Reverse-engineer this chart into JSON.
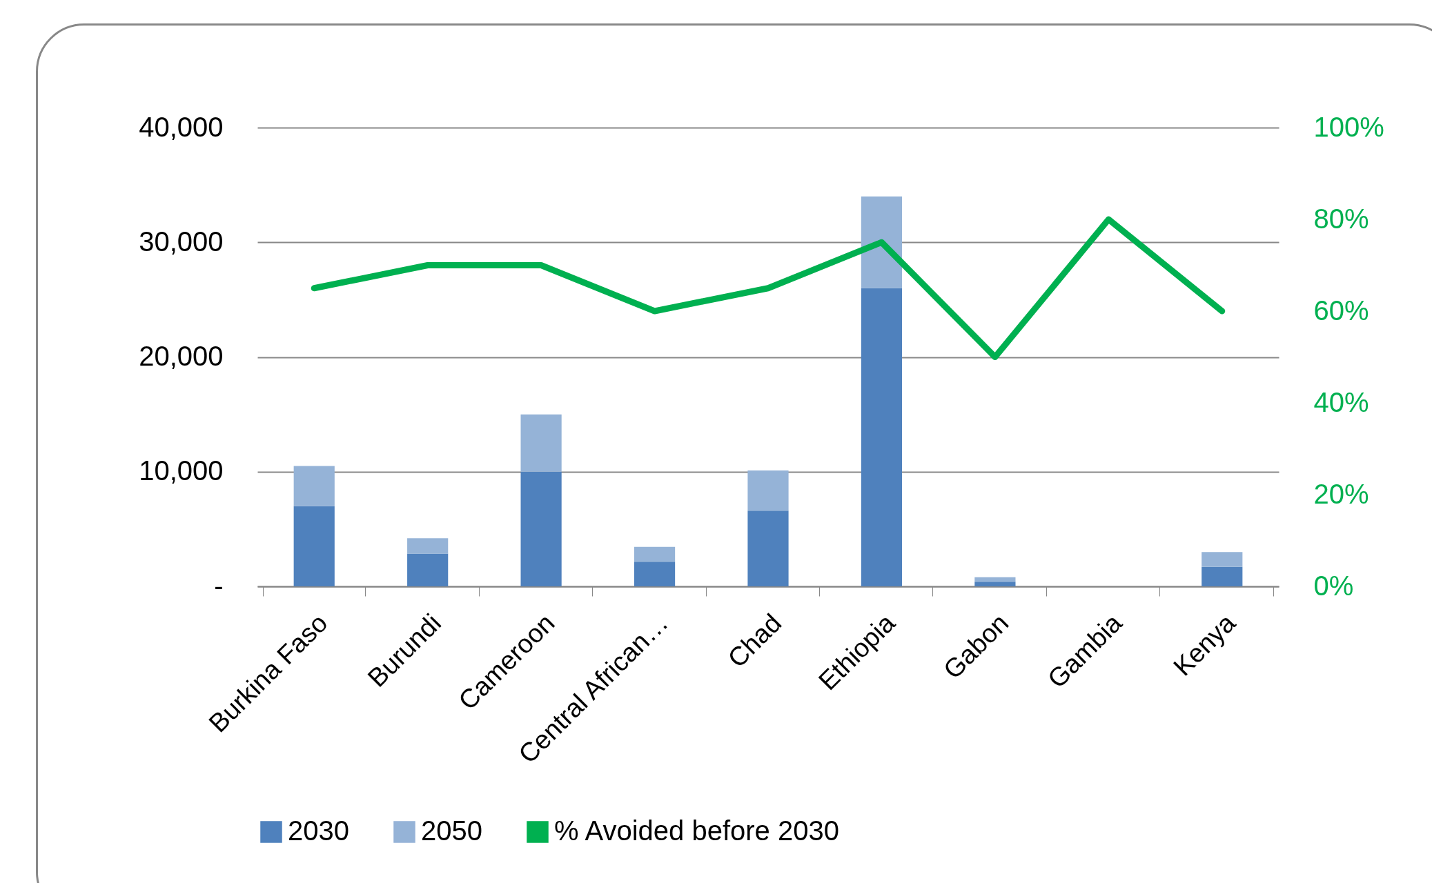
{
  "chart_data": {
    "type": "bar",
    "stacked": true,
    "categories": [
      "Burkina Faso",
      "Burundi",
      "Cameroon",
      "Central African…",
      "Chad",
      "Ethiopia",
      "Gabon",
      "Gambia",
      "Kenya"
    ],
    "series": [
      {
        "name": "2030",
        "color": "#4f81bd",
        "values": [
          7000,
          2850,
          10000,
          2150,
          6600,
          26000,
          400,
          0,
          1700
        ]
      },
      {
        "name": "2050",
        "color": "#95b3d7",
        "values": [
          3500,
          1350,
          5000,
          1300,
          3500,
          8000,
          400,
          0,
          1300
        ]
      },
      {
        "name": "% Avoided before 2030",
        "type": "line",
        "axis": "y2",
        "color": "#00b050",
        "values": [
          65,
          70,
          70,
          60,
          65,
          75,
          50,
          80,
          60
        ]
      }
    ],
    "ylim": [
      0,
      40000
    ],
    "yticks": [
      {
        "value": 0,
        "label": "-"
      },
      {
        "value": 10000,
        "label": "10,000"
      },
      {
        "value": 20000,
        "label": "20,000"
      },
      {
        "value": 30000,
        "label": "30,000"
      },
      {
        "value": 40000,
        "label": "40,000"
      }
    ],
    "y2lim": [
      0,
      100
    ],
    "y2ticks": [
      {
        "value": 0,
        "label": "0%"
      },
      {
        "value": 20,
        "label": "20%"
      },
      {
        "value": 40,
        "label": "40%"
      },
      {
        "value": 60,
        "label": "60%"
      },
      {
        "value": 80,
        "label": "80%"
      },
      {
        "value": 100,
        "label": "100%"
      }
    ],
    "grid": "y",
    "legend": "bottom"
  }
}
